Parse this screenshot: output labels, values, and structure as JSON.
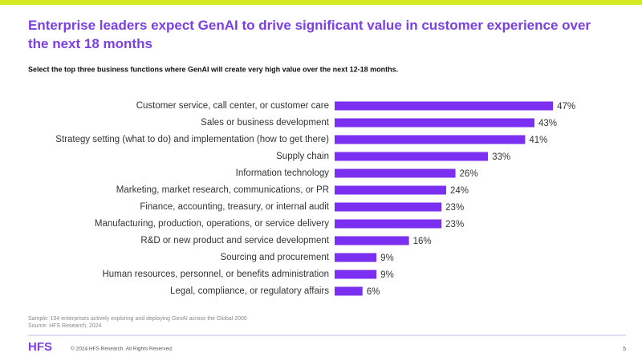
{
  "chart_data": {
    "type": "hbar",
    "title": "Enterprise leaders expect GenAI to drive significant value in customer experience over the next 18 months",
    "subtitle": "Select the top three business functions where GenAI will create very high value over the next 12-18 months.",
    "categories": [
      "Customer service, call center, or customer care",
      "Sales or business development",
      "Strategy setting (what to do) and implementation (how to get there)",
      "Supply chain",
      "Information technology",
      "Marketing, market research, communications, or PR",
      "Finance, accounting, treasury, or internal audit",
      "Manufacturing, production, operations, or service delivery",
      "R&D or new product and service development",
      "Sourcing and procurement",
      "Human resources, personnel, or benefits administration",
      "Legal, compliance, or regulatory affairs"
    ],
    "values": [
      47,
      43,
      41,
      33,
      26,
      24,
      23,
      23,
      16,
      9,
      9,
      6
    ],
    "value_labels": [
      "47%",
      "43%",
      "41%",
      "33%",
      "26%",
      "24%",
      "23%",
      "23%",
      "16%",
      "9%",
      "9%",
      "6%"
    ],
    "color": "#7b2ff0",
    "notes": [
      "Sample: 104 enterprises actively exploring and deploying GenAI across the Global 2000",
      "Source: HFS Research, 2024"
    ]
  },
  "footer": {
    "logo": "HFS",
    "copyright": "© 2024 HFS Research. All Rights Reserved.",
    "page": "5"
  }
}
